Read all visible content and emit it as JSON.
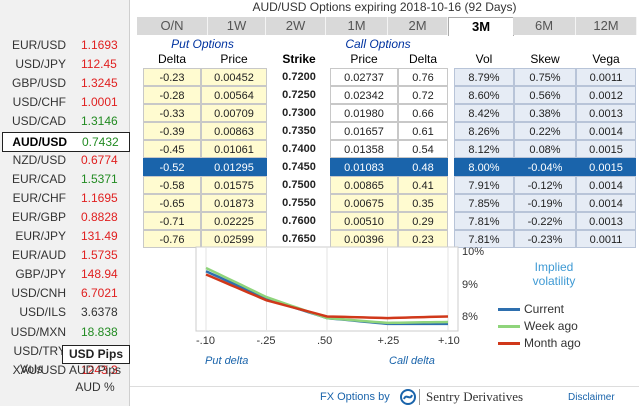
{
  "title": "AUD/USD Options expiring 2018-10-16 (92 Days)",
  "tabs": [
    "O/N",
    "1W",
    "2W",
    "1M",
    "2M",
    "3M",
    "6M",
    "12M"
  ],
  "active_tab": "3M",
  "pairs": [
    {
      "name": "EUR/USD",
      "value": "1.1693",
      "dir": "down"
    },
    {
      "name": "USD/JPY",
      "value": "112.45",
      "dir": "down"
    },
    {
      "name": "GBP/USD",
      "value": "1.3245",
      "dir": "down"
    },
    {
      "name": "USD/CHF",
      "value": "1.0001",
      "dir": "down"
    },
    {
      "name": "USD/CAD",
      "value": "1.3146",
      "dir": "up"
    },
    {
      "name": "AUD/USD",
      "value": "0.7432",
      "dir": "up",
      "selected": true
    },
    {
      "name": "NZD/USD",
      "value": "0.6774",
      "dir": "down"
    },
    {
      "name": "EUR/CAD",
      "value": "1.5371",
      "dir": "up"
    },
    {
      "name": "EUR/CHF",
      "value": "1.1695",
      "dir": "down"
    },
    {
      "name": "EUR/GBP",
      "value": "0.8828",
      "dir": "down"
    },
    {
      "name": "EUR/JPY",
      "value": "131.49",
      "dir": "down"
    },
    {
      "name": "EUR/AUD",
      "value": "1.5735",
      "dir": "down"
    },
    {
      "name": "GBP/JPY",
      "value": "148.94",
      "dir": "down"
    },
    {
      "name": "USD/CNH",
      "value": "6.7021",
      "dir": "down"
    },
    {
      "name": "USD/ILS",
      "value": "3.6378",
      "dir": "neu"
    },
    {
      "name": "USD/MXN",
      "value": "18.838",
      "dir": "up"
    },
    {
      "name": "USD/TRY",
      "value": "4.8366",
      "dir": "up"
    },
    {
      "name": "XAU/USD",
      "value": "1243.3",
      "dir": "down"
    }
  ],
  "vols_label": "Vols",
  "modes": [
    "USD Pips",
    "AUD Pips",
    "AUD %"
  ],
  "headers": {
    "put_options": "Put Options",
    "call_options": "Call Options",
    "delta": "Delta",
    "price": "Price",
    "strike": "Strike",
    "vol": "Vol",
    "skew": "Skew",
    "vega": "Vega"
  },
  "rows": [
    {
      "pd": "-0.23",
      "pp": "0.00452",
      "k": "0.7200",
      "cp": "0.02737",
      "cd": "0.76",
      "v": "8.79%",
      "s": "0.75%",
      "vg": "0.0011"
    },
    {
      "pd": "-0.28",
      "pp": "0.00564",
      "k": "0.7250",
      "cp": "0.02342",
      "cd": "0.72",
      "v": "8.60%",
      "s": "0.56%",
      "vg": "0.0012"
    },
    {
      "pd": "-0.33",
      "pp": "0.00709",
      "k": "0.7300",
      "cp": "0.01980",
      "cd": "0.66",
      "v": "8.42%",
      "s": "0.38%",
      "vg": "0.0013"
    },
    {
      "pd": "-0.39",
      "pp": "0.00863",
      "k": "0.7350",
      "cp": "0.01657",
      "cd": "0.61",
      "v": "8.26%",
      "s": "0.22%",
      "vg": "0.0014"
    },
    {
      "pd": "-0.45",
      "pp": "0.01061",
      "k": "0.7400",
      "cp": "0.01358",
      "cd": "0.54",
      "v": "8.12%",
      "s": "0.08%",
      "vg": "0.0015"
    },
    {
      "pd": "-0.52",
      "pp": "0.01295",
      "k": "0.7450",
      "cp": "0.01083",
      "cd": "0.48",
      "v": "8.00%",
      "s": "-0.04%",
      "vg": "0.0015",
      "atm": true
    },
    {
      "pd": "-0.58",
      "pp": "0.01575",
      "k": "0.7500",
      "cp": "0.00865",
      "cd": "0.41",
      "v": "7.91%",
      "s": "-0.12%",
      "vg": "0.0014"
    },
    {
      "pd": "-0.65",
      "pp": "0.01873",
      "k": "0.7550",
      "cp": "0.00675",
      "cd": "0.35",
      "v": "7.85%",
      "s": "-0.19%",
      "vg": "0.0014"
    },
    {
      "pd": "-0.71",
      "pp": "0.02225",
      "k": "0.7600",
      "cp": "0.00510",
      "cd": "0.29",
      "v": "7.81%",
      "s": "-0.22%",
      "vg": "0.0013"
    },
    {
      "pd": "-0.76",
      "pp": "0.02599",
      "k": "0.7650",
      "cp": "0.00396",
      "cd": "0.23",
      "v": "7.81%",
      "s": "-0.23%",
      "vg": "0.0011"
    }
  ],
  "chart_data": {
    "type": "line",
    "title": "Implied volatility",
    "x": [
      -0.1,
      -0.25,
      -0.5,
      0.25,
      0.1
    ],
    "x_tick_labels": [
      "-.10",
      "-.25",
      ".50",
      "+.25",
      "+.10"
    ],
    "x_captions": [
      "Put delta",
      "Call delta"
    ],
    "y_tick_labels": [
      "10%",
      "9%",
      "8%"
    ],
    "ylim": [
      7.6,
      10.2
    ],
    "series": [
      {
        "name": "Current",
        "color": "#2e6fae",
        "values": [
          9.45,
          8.6,
          8.0,
          7.82,
          7.82
        ]
      },
      {
        "name": "Week ago",
        "color": "#8fd47b",
        "values": [
          9.55,
          8.65,
          8.0,
          7.85,
          7.88
        ]
      },
      {
        "name": "Month ago",
        "color": "#d0381a",
        "values": [
          9.35,
          8.55,
          8.05,
          8.0,
          8.05
        ]
      }
    ]
  },
  "footer": {
    "fx_by": "FX Options by",
    "brand": "Sentry Derivatives",
    "disclaimer": "Disclaimer"
  }
}
